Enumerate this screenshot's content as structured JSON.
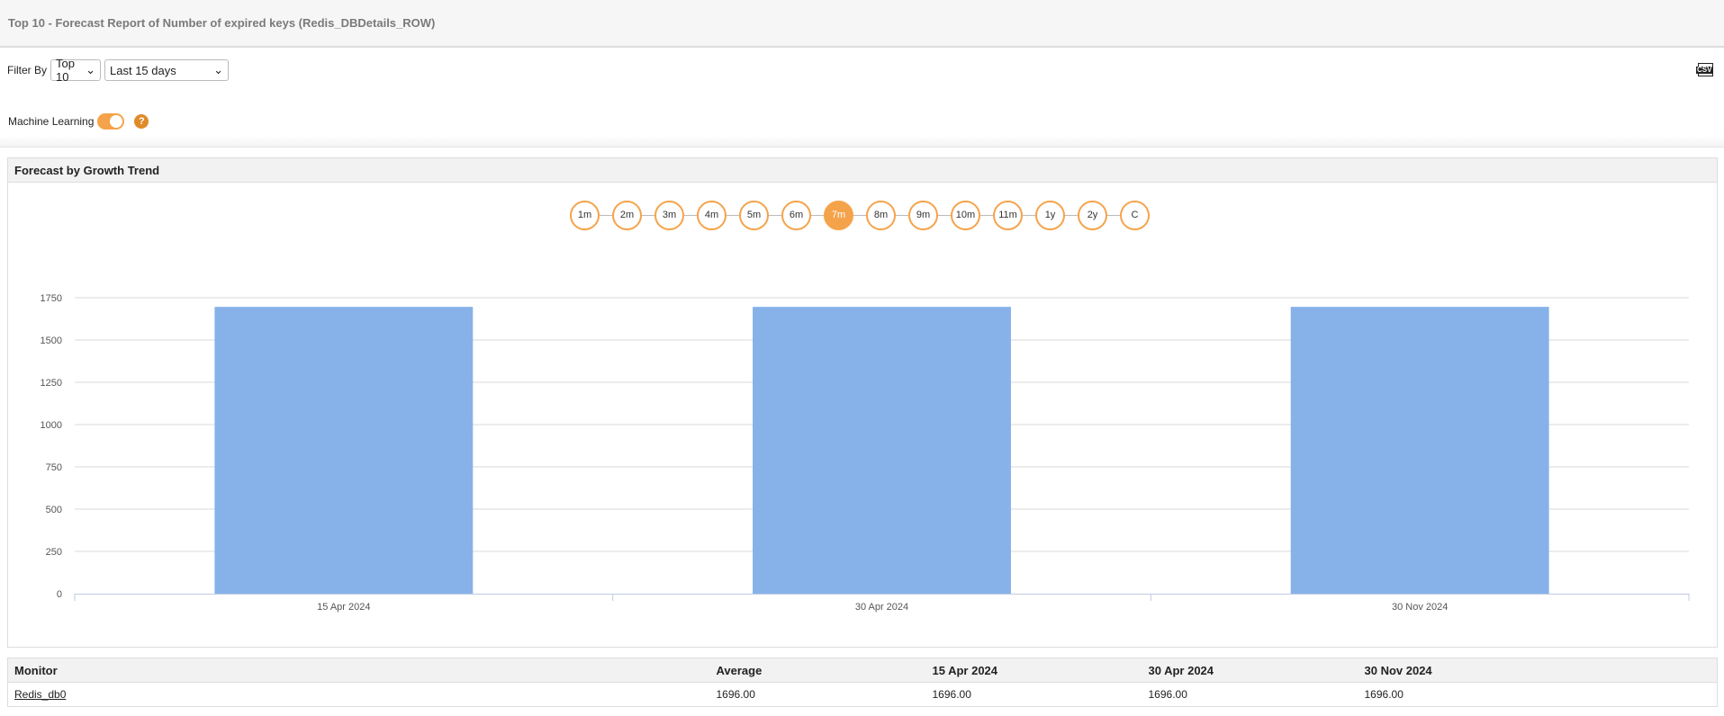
{
  "header": {
    "title": "Top 10 - Forecast Report of Number of expired keys (Redis_DBDetails_ROW)"
  },
  "filter": {
    "label": "Filter By",
    "top_value": "Top 10",
    "period_value": "Last 15 days"
  },
  "ml": {
    "label": "Machine Learning",
    "enabled": true,
    "help": "?"
  },
  "export": {
    "icon": "csv-icon",
    "label": "CSV"
  },
  "panel": {
    "title": "Forecast by Growth Trend"
  },
  "steps": [
    {
      "label": "1m"
    },
    {
      "label": "2m"
    },
    {
      "label": "3m"
    },
    {
      "label": "4m"
    },
    {
      "label": "5m"
    },
    {
      "label": "6m"
    },
    {
      "label": "7m",
      "active": true
    },
    {
      "label": "8m"
    },
    {
      "label": "9m"
    },
    {
      "label": "10m"
    },
    {
      "label": "11m"
    },
    {
      "label": "1y"
    },
    {
      "label": "2y"
    },
    {
      "label": "C"
    }
  ],
  "colors": {
    "accent": "#f5a34a",
    "bar": "#86b2e9"
  },
  "chart_data": {
    "type": "bar",
    "categories": [
      "15 Apr 2024",
      "30 Apr 2024",
      "30 Nov 2024"
    ],
    "values": [
      1696,
      1696,
      1696
    ],
    "ylim": [
      0,
      1750
    ],
    "yticks": [
      0,
      250,
      500,
      750,
      1000,
      1250,
      1500,
      1750
    ],
    "grid": true
  },
  "table": {
    "headers": [
      "Monitor",
      "Average",
      "15 Apr 2024",
      "30 Apr 2024",
      "30 Nov 2024"
    ],
    "rows": [
      [
        "Redis_db0",
        "1696.00",
        "1696.00",
        "1696.00",
        "1696.00"
      ]
    ]
  }
}
